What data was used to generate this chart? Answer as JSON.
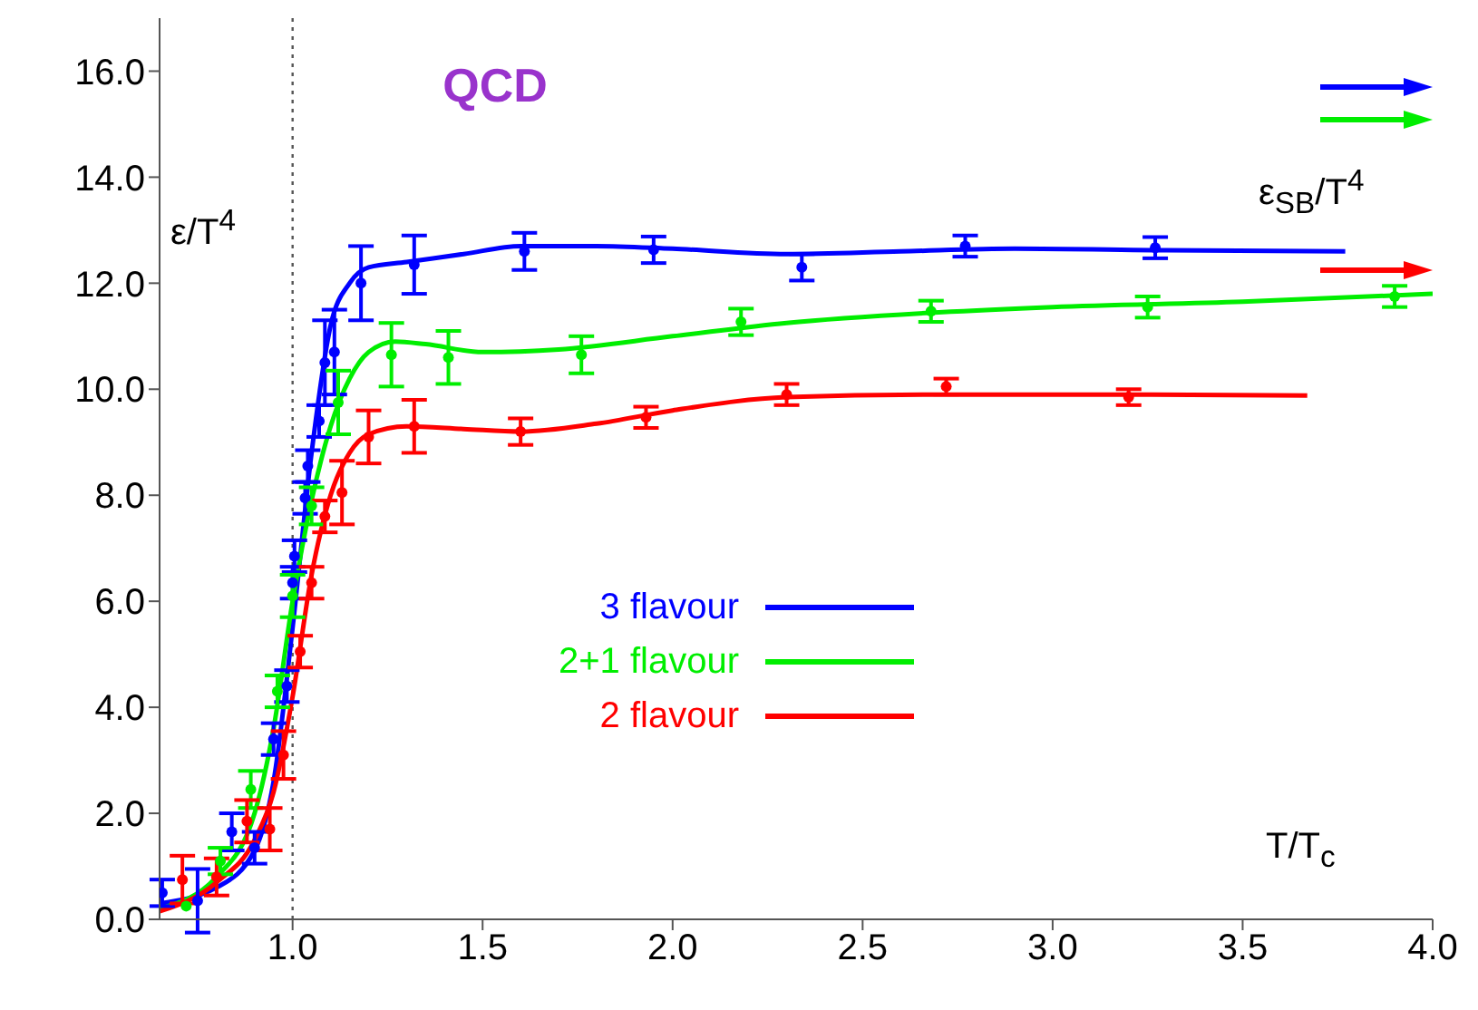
{
  "chart_data": {
    "type": "line",
    "title": "QCD",
    "xlabel": "T/T$_{c}$",
    "ylabel": "ε/T$^{4}$",
    "xlim": [
      0.65,
      4.0
    ],
    "xticks": [
      {
        "value": 1,
        "label": "1.0"
      },
      {
        "value": 1.5,
        "label": "1.5"
      },
      {
        "value": 2,
        "label": "2.0"
      },
      {
        "value": 2.5,
        "label": "2.5"
      },
      {
        "value": 3,
        "label": "3.0"
      },
      {
        "value": 3.5,
        "label": "3.5"
      },
      {
        "value": 4,
        "label": "4.0"
      }
    ],
    "ylim": [
      0,
      17
    ],
    "yticks": [
      {
        "value": 0,
        "label": "0.0"
      },
      {
        "value": 2,
        "label": "2.0"
      },
      {
        "value": 4,
        "label": "4.0"
      },
      {
        "value": 6,
        "label": "6.0"
      },
      {
        "value": 8,
        "label": "8.0"
      },
      {
        "value": 10,
        "label": "10.0"
      },
      {
        "value": 12,
        "label": "12.0"
      },
      {
        "value": 14,
        "label": "14.0"
      },
      {
        "value": 16,
        "label": "16.0"
      }
    ],
    "legend": "center",
    "series": [
      {
        "name": "3 flavour",
        "marker": "none",
        "color": "#0000ff",
        "x": [
          0.65,
          0.8,
          0.9,
          0.95,
          1.0,
          1.05,
          1.1,
          1.15,
          1.2,
          1.3,
          1.45,
          1.6,
          1.8,
          2.0,
          2.3,
          2.6,
          2.9,
          3.3,
          3.77
        ],
        "values": [
          0.3,
          0.6,
          1.3,
          2.6,
          5.5,
          8.8,
          11.2,
          12.0,
          12.3,
          12.4,
          12.55,
          12.7,
          12.7,
          12.65,
          12.55,
          12.6,
          12.65,
          12.62,
          12.6
        ]
      },
      {
        "name": "2+1 flavour",
        "marker": "none",
        "color": "#00ee00",
        "x": [
          0.65,
          0.8,
          0.9,
          0.95,
          1.0,
          1.05,
          1.1,
          1.15,
          1.2,
          1.27,
          1.35,
          1.5,
          1.7,
          2.0,
          2.3,
          2.7,
          3.0,
          3.5,
          4.0
        ],
        "values": [
          0.2,
          0.8,
          2.0,
          3.6,
          6.0,
          7.9,
          9.3,
          10.2,
          10.7,
          10.9,
          10.85,
          10.7,
          10.75,
          11.0,
          11.25,
          11.45,
          11.55,
          11.65,
          11.8
        ]
      },
      {
        "name": "2 flavour",
        "marker": "none",
        "color": "#ff0000",
        "x": [
          0.65,
          0.8,
          0.9,
          0.95,
          1.0,
          1.05,
          1.1,
          1.15,
          1.2,
          1.3,
          1.45,
          1.6,
          1.8,
          2.0,
          2.3,
          2.7,
          3.2,
          3.67
        ],
        "values": [
          0.15,
          0.7,
          1.5,
          2.4,
          4.2,
          6.5,
          8.0,
          8.8,
          9.15,
          9.3,
          9.25,
          9.2,
          9.35,
          9.6,
          9.85,
          9.9,
          9.9,
          9.88
        ]
      },
      {
        "type": "scatter",
        "marker": "circle",
        "color": "#0000ff",
        "x": [
          0.657,
          0.75,
          0.84,
          0.9,
          0.95,
          0.985,
          1.0,
          1.005,
          1.033,
          1.04,
          1.07,
          1.085,
          1.11,
          1.18,
          1.32,
          1.61,
          1.95,
          2.34,
          2.77,
          3.27
        ],
        "values": [
          0.5,
          0.35,
          1.65,
          1.35,
          3.4,
          4.4,
          6.35,
          6.85,
          7.95,
          8.55,
          9.4,
          10.5,
          10.7,
          12.0,
          12.35,
          12.6,
          12.63,
          12.3,
          12.7,
          12.67
        ],
        "errors": [
          0.25,
          0.6,
          0.35,
          0.3,
          0.3,
          0.3,
          0.3,
          0.3,
          0.3,
          0.3,
          0.3,
          0.8,
          0.8,
          0.7,
          0.55,
          0.35,
          0.25,
          0.25,
          0.2,
          0.2
        ]
      },
      {
        "type": "scatter",
        "marker": "circle",
        "color": "#00ee00",
        "x": [
          0.72,
          0.81,
          0.89,
          0.96,
          1.0,
          1.05,
          1.12,
          1.26,
          1.41,
          1.76,
          2.18,
          2.68,
          3.25,
          3.9
        ],
        "values": [
          0.25,
          1.1,
          2.45,
          4.3,
          6.1,
          7.8,
          9.75,
          10.65,
          10.6,
          10.65,
          11.27,
          11.47,
          11.55,
          11.75
        ],
        "errors": [
          null,
          0.25,
          0.35,
          0.3,
          0.4,
          0.35,
          0.6,
          0.6,
          0.5,
          0.35,
          0.25,
          0.2,
          0.2,
          0.2
        ]
      },
      {
        "type": "scatter",
        "marker": "circle",
        "color": "#ff0000",
        "x": [
          0.71,
          0.8,
          0.88,
          0.94,
          0.976,
          1.02,
          1.05,
          1.085,
          1.13,
          1.2,
          1.32,
          1.6,
          1.93,
          2.3,
          2.72,
          3.2
        ],
        "values": [
          0.75,
          0.8,
          1.85,
          1.7,
          3.1,
          5.05,
          6.35,
          7.6,
          8.05,
          9.1,
          9.3,
          9.2,
          9.47,
          9.9,
          10.05,
          9.85
        ],
        "errors": [
          0.45,
          0.35,
          0.4,
          0.4,
          0.45,
          0.3,
          0.3,
          0.3,
          0.6,
          0.5,
          0.5,
          0.25,
          0.2,
          0.2,
          0.15,
          0.15
        ]
      }
    ],
    "ref_lines": [
      {
        "axis": "x",
        "value": 1.0,
        "color": "#555555",
        "line_style": "dotted"
      }
    ],
    "annotations": [
      "ε$_{SB}$/T$^{4}$"
    ]
  }
}
